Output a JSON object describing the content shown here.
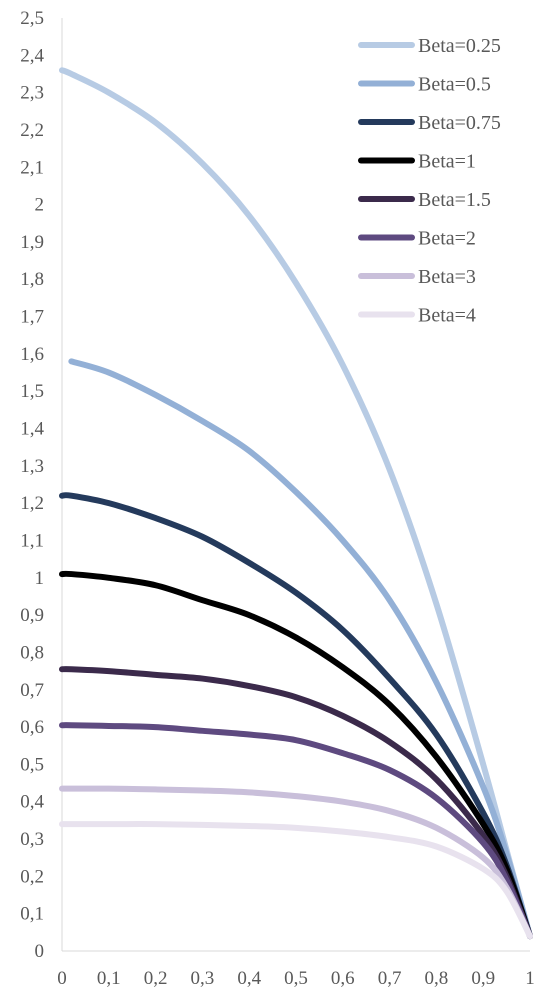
{
  "chart_data": {
    "type": "line",
    "title": "",
    "xlabel": "",
    "ylabel": "",
    "xlim": [
      0,
      1
    ],
    "ylim": [
      0,
      2.5
    ],
    "x_ticks": [
      "0",
      "0,1",
      "0,2",
      "0,3",
      "0,4",
      "0,5",
      "0,6",
      "0,7",
      "0,8",
      "0,9",
      "1"
    ],
    "y_ticks": [
      "0",
      "0,1",
      "0,2",
      "0,3",
      "0,4",
      "0,5",
      "0,6",
      "0,7",
      "0,8",
      "0,9",
      "1",
      "1,1",
      "1,2",
      "1,3",
      "1,4",
      "1,5",
      "1,6",
      "1,7",
      "1,8",
      "1,9",
      "2",
      "2,1",
      "2,2",
      "2,3",
      "2,4",
      "2,5"
    ],
    "grid": false,
    "legend_position": "top-right",
    "x": [
      0.0,
      0.02,
      0.1,
      0.2,
      0.3,
      0.4,
      0.5,
      0.6,
      0.7,
      0.8,
      0.9,
      0.95,
      1.0
    ],
    "series": [
      {
        "name": "Beta=0.25",
        "color": "#b7cbe4",
        "values": [
          2.36,
          2.35,
          2.3,
          2.22,
          2.11,
          1.97,
          1.79,
          1.57,
          1.29,
          0.93,
          0.5,
          0.27,
          0.04
        ]
      },
      {
        "name": "Beta=0.5",
        "color": "#93b0d6",
        "values": [
          null,
          1.58,
          1.55,
          1.49,
          1.42,
          1.34,
          1.23,
          1.1,
          0.94,
          0.72,
          0.44,
          0.26,
          0.04
        ]
      },
      {
        "name": "Beta=0.75",
        "color": "#243a5c",
        "values": [
          1.22,
          1.22,
          1.2,
          1.16,
          1.11,
          1.04,
          0.96,
          0.86,
          0.73,
          0.58,
          0.37,
          0.23,
          0.04
        ]
      },
      {
        "name": "Beta=1",
        "color": "#000000",
        "values": [
          1.01,
          1.01,
          1.0,
          0.98,
          0.94,
          0.9,
          0.84,
          0.76,
          0.66,
          0.52,
          0.34,
          0.22,
          0.04
        ]
      },
      {
        "name": "Beta=1.5",
        "color": "#3b2a4b",
        "values": [
          0.755,
          0.755,
          0.75,
          0.74,
          0.73,
          0.71,
          0.68,
          0.63,
          0.56,
          0.46,
          0.31,
          0.2,
          0.04
        ]
      },
      {
        "name": "Beta=2",
        "color": "#5e4a80",
        "values": [
          0.605,
          0.605,
          0.603,
          0.6,
          0.59,
          0.58,
          0.565,
          0.53,
          0.485,
          0.41,
          0.29,
          0.19,
          0.04
        ]
      },
      {
        "name": "Beta=3",
        "color": "#c9bfda",
        "values": [
          0.435,
          0.435,
          0.435,
          0.433,
          0.43,
          0.425,
          0.415,
          0.4,
          0.375,
          0.33,
          0.25,
          0.17,
          0.04
        ]
      },
      {
        "name": "Beta=4",
        "color": "#e8e2ee",
        "values": [
          0.34,
          0.34,
          0.34,
          0.34,
          0.338,
          0.335,
          0.33,
          0.32,
          0.305,
          0.28,
          0.22,
          0.16,
          0.04
        ]
      }
    ]
  }
}
